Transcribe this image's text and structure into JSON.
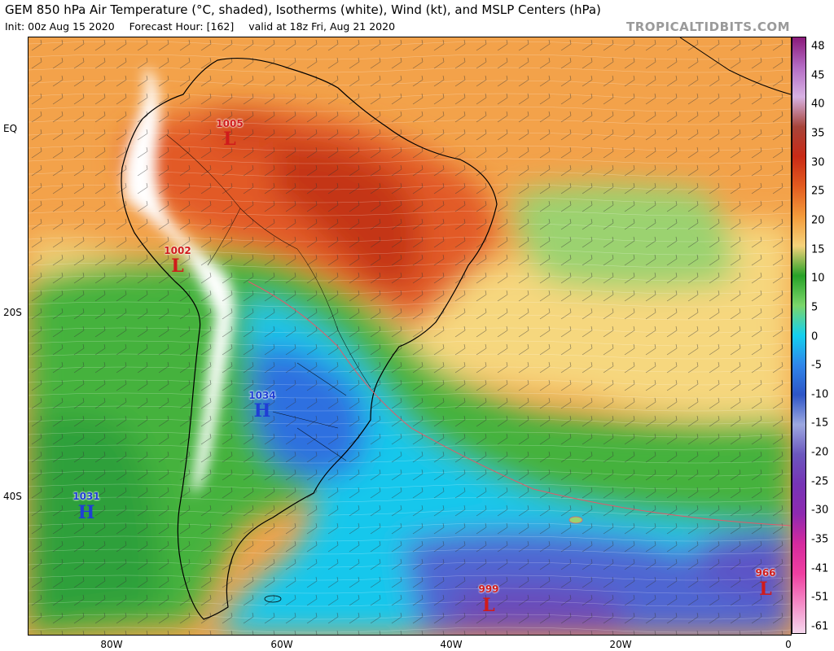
{
  "header": {
    "title": "GEM 850 hPa Air Temperature (°C, shaded), Isotherms (white), Wind (kt), and MSLP Centers (hPa)",
    "init": "Init: 00z Aug 15 2020",
    "forecast_hour": "Forecast Hour: [162]",
    "valid": "valid at 18z Fri, Aug 21 2020",
    "brand": "TROPICALTIDBITS.COM"
  },
  "axes": {
    "lat_labels": [
      "EQ",
      "20S",
      "40S"
    ],
    "lon_labels": [
      "80W",
      "60W",
      "40W",
      "20W",
      "0"
    ]
  },
  "colorbar": {
    "labels": [
      "48",
      "45",
      "40",
      "35",
      "30",
      "25",
      "20",
      "15",
      "10",
      "5",
      "0",
      "-5",
      "-10",
      "-15",
      "-20",
      "-25",
      "-30",
      "-35",
      "-41",
      "-51",
      "-61"
    ],
    "colors": [
      "#8a1a7a",
      "#b46cc4",
      "#d7b2e3",
      "#a7443a",
      "#c92a16",
      "#e35b1f",
      "#f49a3a",
      "#f5d27a",
      "#28a228",
      "#7ad66a",
      "#14d0ee",
      "#2f86ea",
      "#2e55c6",
      "#9ca8e0",
      "#6b57bd",
      "#7634b5",
      "#8e2ab0",
      "#d52a9e",
      "#ef3fa0",
      "#f48bc6",
      "#f5d6ec"
    ]
  },
  "pressure_centers": [
    {
      "type": "L",
      "value": "1005",
      "color": "#d01b1b"
    },
    {
      "type": "L",
      "value": "1002",
      "color": "#d01b1b"
    },
    {
      "type": "H",
      "value": "1034",
      "color": "#1f3fd4"
    },
    {
      "type": "H",
      "value": "1031",
      "color": "#1f3fd4"
    },
    {
      "type": "L",
      "value": "999",
      "color": "#d01b1b"
    },
    {
      "type": "L",
      "value": "966",
      "color": "#d01b1b"
    }
  ]
}
